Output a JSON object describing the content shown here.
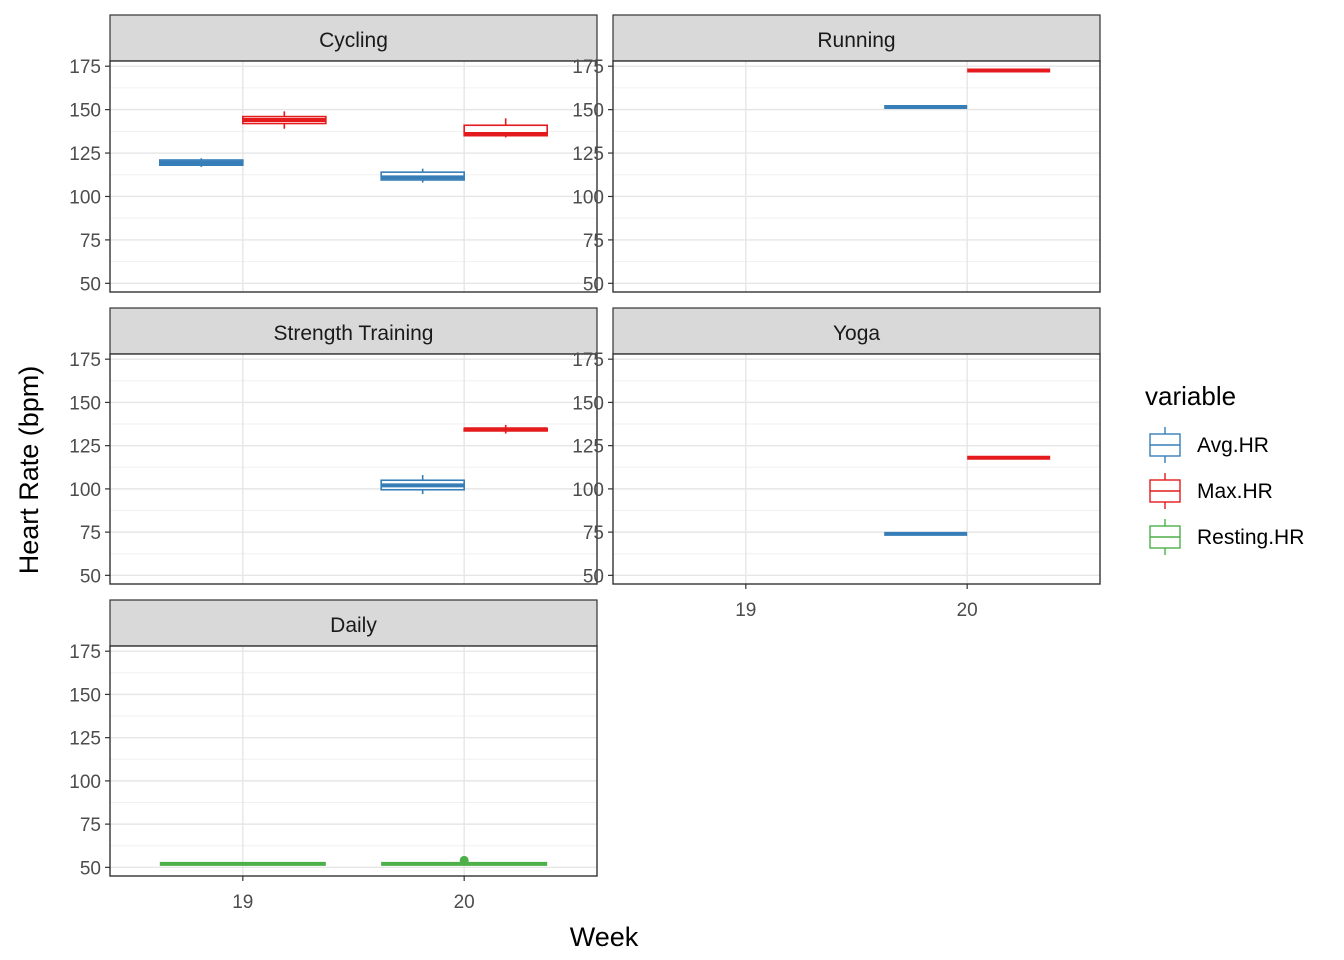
{
  "chart_data": {
    "type": "box",
    "facet_by": "activity",
    "xlabel": "Week",
    "ylabel": "Heart Rate (bpm)",
    "x_categories": [
      "19",
      "20"
    ],
    "y_ticks": [
      50,
      75,
      100,
      125,
      150,
      175
    ],
    "ylim": [
      45,
      178
    ],
    "grid": true,
    "legend": {
      "title": "variable",
      "position": "right",
      "entries": [
        {
          "name": "Avg.HR",
          "color": "#377EB8"
        },
        {
          "name": "Max.HR",
          "color": "#E41A1C"
        },
        {
          "name": "Resting.HR",
          "color": "#4DAF4A"
        }
      ]
    },
    "panels": [
      {
        "label": "Cycling",
        "boxes": [
          {
            "variable": "Avg.HR",
            "week": "19",
            "min": 117,
            "q1": 118,
            "median": 119.5,
            "q3": 121,
            "max": 122
          },
          {
            "variable": "Max.HR",
            "week": "19",
            "min": 139,
            "q1": 142,
            "median": 144,
            "q3": 146,
            "max": 149
          },
          {
            "variable": "Avg.HR",
            "week": "20",
            "min": 108,
            "q1": 109.5,
            "median": 111,
            "q3": 114,
            "max": 116
          },
          {
            "variable": "Max.HR",
            "week": "20",
            "min": 134,
            "q1": 135,
            "median": 136,
            "q3": 141,
            "max": 145
          }
        ]
      },
      {
        "label": "Running",
        "boxes": [
          {
            "variable": "Avg.HR",
            "week": "20",
            "min": 151.5,
            "q1": 151.5,
            "median": 151.5,
            "q3": 151.5,
            "max": 151.5
          },
          {
            "variable": "Max.HR",
            "week": "20",
            "min": 172.5,
            "q1": 172.5,
            "median": 172.5,
            "q3": 172.5,
            "max": 172.5
          }
        ]
      },
      {
        "label": "Strength Training",
        "boxes": [
          {
            "variable": "Avg.HR",
            "week": "20",
            "min": 97,
            "q1": 99.5,
            "median": 102,
            "q3": 105,
            "max": 108
          },
          {
            "variable": "Max.HR",
            "week": "20",
            "min": 132,
            "q1": 133.5,
            "median": 134.5,
            "q3": 135,
            "max": 137
          }
        ]
      },
      {
        "label": "Yoga",
        "boxes": [
          {
            "variable": "Avg.HR",
            "week": "20",
            "min": 74,
            "q1": 74,
            "median": 74,
            "q3": 74,
            "max": 74
          },
          {
            "variable": "Max.HR",
            "week": "20",
            "min": 118,
            "q1": 118,
            "median": 118,
            "q3": 118,
            "max": 118
          }
        ]
      },
      {
        "label": "Daily",
        "boxes": [
          {
            "variable": "Resting.HR",
            "week": "19",
            "min": 52,
            "q1": 52,
            "median": 52,
            "q3": 52,
            "max": 52,
            "outliers": []
          },
          {
            "variable": "Resting.HR",
            "week": "20",
            "min": 52,
            "q1": 52,
            "median": 52,
            "q3": 52,
            "max": 52,
            "outliers": [
              54
            ]
          }
        ]
      }
    ]
  }
}
